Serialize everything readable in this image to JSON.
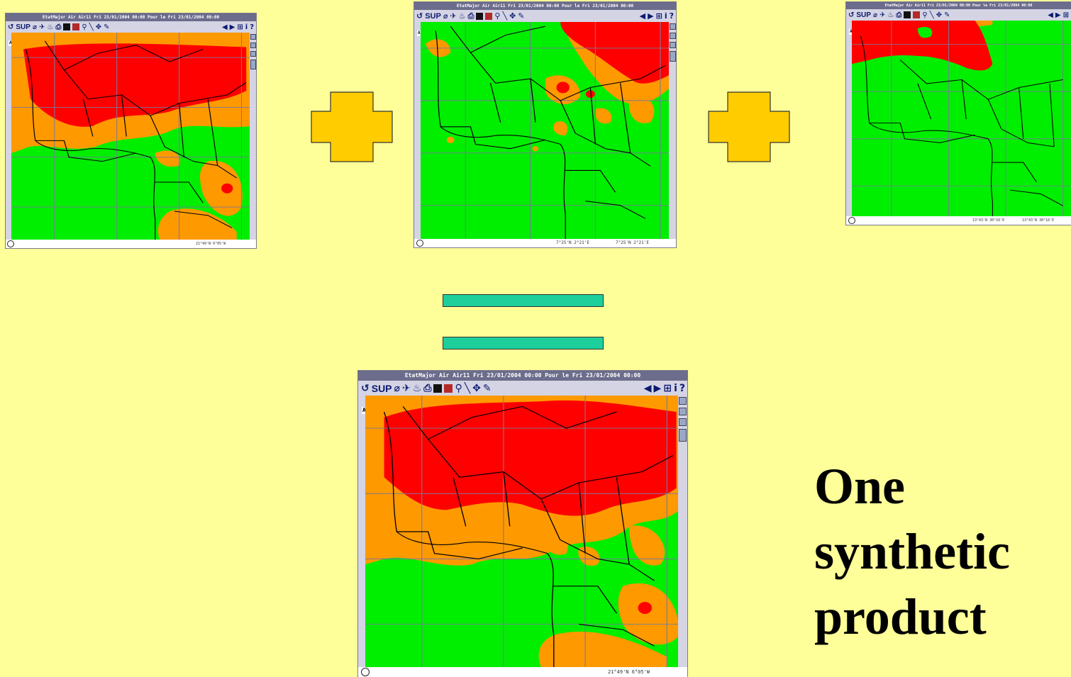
{
  "windows": {
    "w1": {
      "title": "EtatMajor Air Air11 Fri 23/01/2004 00:00 Pour le Fri 23/01/2004 00:00",
      "tool_sup": "SUP",
      "layer": "Air1",
      "coord_a": "",
      "coord_b": "21°49'N 6°05'W"
    },
    "w2": {
      "title": "EtatMajor Air Air11 Fri 23/01/2004 00:00 Pour le Fri 23/01/2004 00:00",
      "tool_sup": "SUP",
      "layer": "Air1",
      "coord_a": "7°25'N 2°21'E",
      "coord_b": "7°25'N 2°21'E"
    },
    "w3": {
      "title": "EtatMajor Air Air11 Fri 23/01/2004 00:00 Pour le Fri 23/01/2004 00:00",
      "tool_sup": "SUP",
      "layer": "Air1",
      "coord_a": "13°43'N 30°16'E",
      "coord_b": "13°43'N 30°16'E"
    },
    "result": {
      "title": "EtatMajor Air Air11 Fri 23/01/2004 00:00 Pour le Fri 23/01/2004 00:00",
      "tool_sup": "SUP",
      "layer": "Air1",
      "coord_a": "",
      "coord_b": "21°49'N 6°05'W"
    }
  },
  "toolbar_icons": [
    "undo-icon",
    "sup-label",
    "brush-icon",
    "airplane-icon",
    "fire-icon",
    "printer-icon",
    "save-icon",
    "palette-icon",
    "zoom-icon",
    "line-icon",
    "move-icon",
    "pen-icon",
    "prev-icon",
    "pan-icon",
    "next-icon",
    "zoom-level-icon",
    "info-icon",
    "help-icon"
  ],
  "caption": {
    "line1": "One",
    "line2": "synthetic",
    "line3": "product"
  },
  "colors": {
    "background": "#ffff99",
    "risk_high": "#ff0000",
    "risk_medium": "#ff9900",
    "risk_low": "#00ee00",
    "plus_fill": "#ffcc00",
    "equals_fill": "#1dcf9a"
  }
}
